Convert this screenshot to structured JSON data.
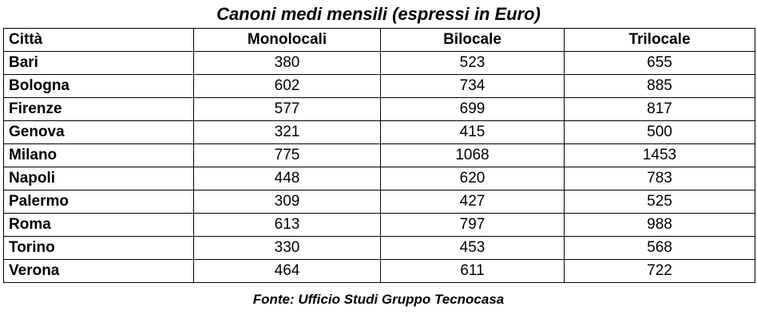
{
  "chart_data": {
    "type": "table",
    "title": "Canoni medi mensili (espressi in Euro)",
    "columns": [
      "Città",
      "Monolocali",
      "Bilocale",
      "Trilocale"
    ],
    "rows": [
      {
        "city": "Bari",
        "values": [
          380,
          523,
          655
        ]
      },
      {
        "city": "Bologna",
        "values": [
          602,
          734,
          885
        ]
      },
      {
        "city": "Firenze",
        "values": [
          577,
          699,
          817
        ]
      },
      {
        "city": "Genova",
        "values": [
          321,
          415,
          500
        ]
      },
      {
        "city": "Milano",
        "values": [
          775,
          1068,
          1453
        ]
      },
      {
        "city": "Napoli",
        "values": [
          448,
          620,
          783
        ]
      },
      {
        "city": "Palermo",
        "values": [
          309,
          427,
          525
        ]
      },
      {
        "city": "Roma",
        "values": [
          613,
          797,
          988
        ]
      },
      {
        "city": "Torino",
        "values": [
          330,
          453,
          568
        ]
      },
      {
        "city": "Verona",
        "values": [
          464,
          611,
          722
        ]
      }
    ],
    "source": "Fonte: Ufficio Studi Gruppo Tecnocasa"
  }
}
